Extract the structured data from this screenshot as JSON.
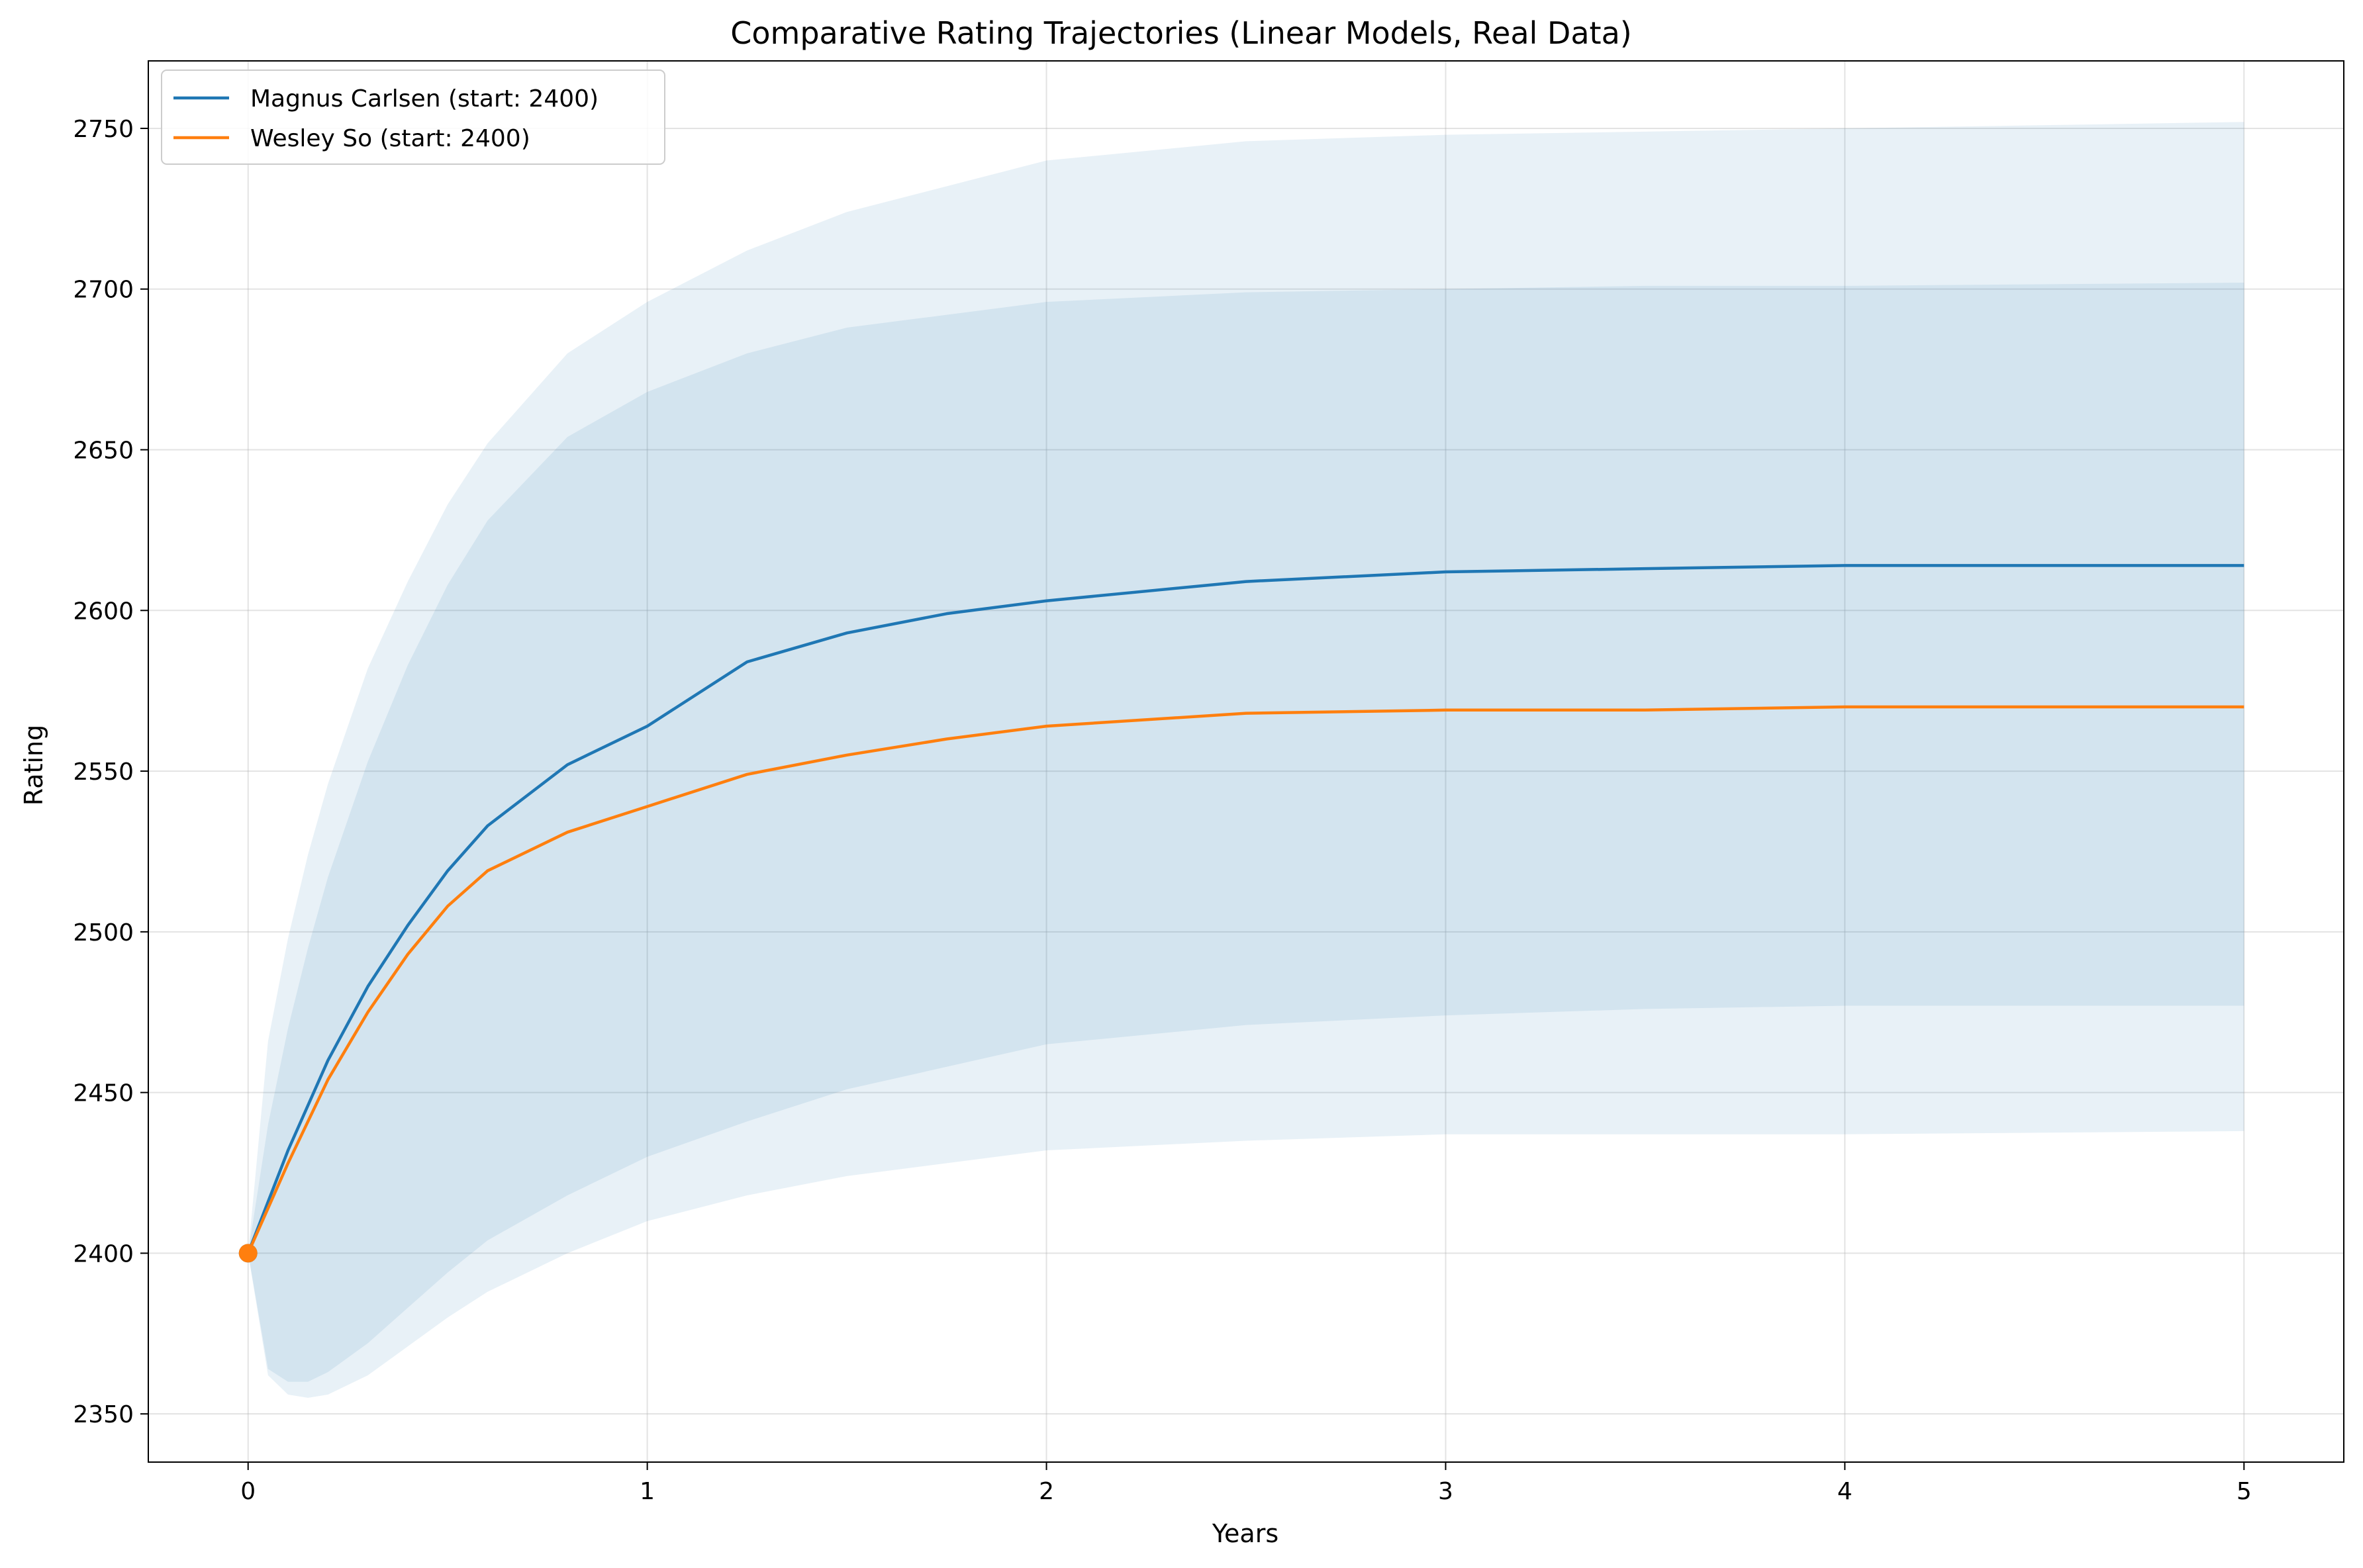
{
  "chart_data": {
    "type": "line",
    "title": "Comparative Rating Trajectories (Linear Models, Real Data)",
    "xlabel": "Years",
    "ylabel": "Rating",
    "xlim": [
      -0.25,
      5.25
    ],
    "ylim": [
      2335,
      2771
    ],
    "xticks": [
      0,
      1,
      2,
      3,
      4,
      5
    ],
    "yticks": [
      2350,
      2400,
      2450,
      2500,
      2550,
      2600,
      2650,
      2700,
      2750
    ],
    "grid": true,
    "legend_position": "top-left",
    "band_color": "#1f77b4",
    "series": [
      {
        "name": "Magnus Carlsen (start: 2400)",
        "color": "#1f77b4",
        "x": [
          0,
          0.1,
          0.2,
          0.3,
          0.4,
          0.5,
          0.6,
          0.8,
          1.0,
          1.25,
          1.5,
          1.75,
          2.0,
          2.5,
          3.0,
          3.5,
          4.0,
          4.5,
          5.0
        ],
        "values": [
          2400,
          2432,
          2460,
          2483,
          2502,
          2519,
          2533,
          2552,
          2564,
          2584,
          2593,
          2599,
          2603,
          2609,
          2612,
          2613,
          2614,
          2614,
          2614
        ]
      },
      {
        "name": "Wesley So (start: 2400)",
        "color": "#ff7f0e",
        "x": [
          0,
          0.1,
          0.2,
          0.3,
          0.4,
          0.5,
          0.6,
          0.8,
          1.0,
          1.25,
          1.5,
          1.75,
          2.0,
          2.5,
          3.0,
          3.5,
          4.0,
          4.5,
          5.0
        ],
        "values": [
          2400,
          2428,
          2454,
          2475,
          2493,
          2508,
          2519,
          2531,
          2539,
          2549,
          2555,
          2560,
          2564,
          2568,
          2569,
          2569,
          2570,
          2570,
          2570
        ]
      }
    ],
    "bands": [
      {
        "x": [
          0,
          0.05,
          0.1,
          0.15,
          0.2,
          0.3,
          0.4,
          0.5,
          0.6,
          0.8,
          1.0,
          1.25,
          1.5,
          2.0,
          2.5,
          3.0,
          3.5,
          4.0,
          5.0
        ],
        "lower": [
          2400,
          2362,
          2356,
          2355,
          2356,
          2362,
          2371,
          2380,
          2388,
          2400,
          2410,
          2418,
          2424,
          2432,
          2435,
          2437,
          2437,
          2437,
          2438
        ],
        "upper": [
          2400,
          2466,
          2498,
          2524,
          2546,
          2582,
          2609,
          2633,
          2652,
          2680,
          2696,
          2712,
          2724,
          2740,
          2746,
          2748,
          2749,
          2750,
          2752
        ]
      },
      {
        "x": [
          0,
          0.05,
          0.1,
          0.15,
          0.2,
          0.3,
          0.4,
          0.5,
          0.6,
          0.8,
          1.0,
          1.25,
          1.5,
          2.0,
          2.5,
          3.0,
          3.5,
          4.0,
          5.0
        ],
        "lower": [
          2400,
          2364,
          2360,
          2360,
          2363,
          2372,
          2383,
          2394,
          2404,
          2418,
          2430,
          2441,
          2451,
          2465,
          2471,
          2474,
          2476,
          2477,
          2477
        ],
        "upper": [
          2400,
          2440,
          2470,
          2495,
          2517,
          2553,
          2583,
          2608,
          2628,
          2654,
          2668,
          2680,
          2688,
          2696,
          2699,
          2700,
          2701,
          2701,
          2702
        ]
      }
    ],
    "markers": [
      {
        "x": 0,
        "y": 2400,
        "color": "#1f77b4"
      },
      {
        "x": 0,
        "y": 2400,
        "color": "#ff7f0e"
      }
    ]
  }
}
